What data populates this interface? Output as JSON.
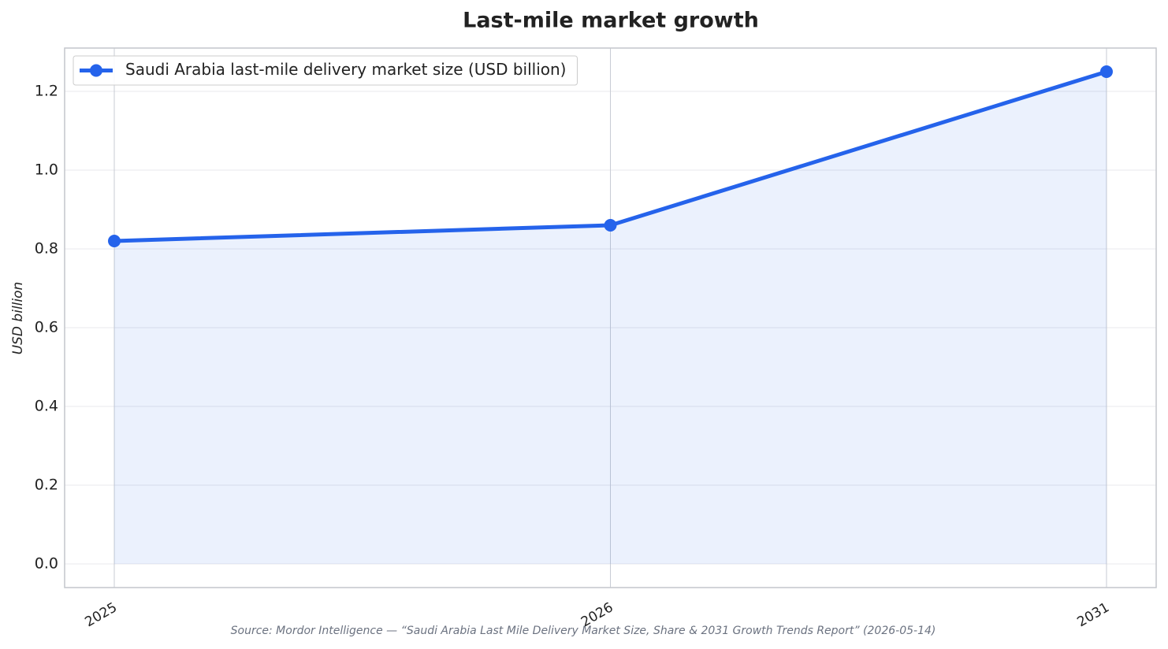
{
  "chart_data": {
    "type": "line",
    "title": "Last-mile market growth",
    "categories": [
      "2025",
      "2026",
      "2031"
    ],
    "series": [
      {
        "name": "Saudi Arabia last-mile delivery market size (USD billion)",
        "color": "#2563eb",
        "values": [
          0.82,
          0.86,
          1.25
        ]
      }
    ],
    "ylabel": "USD billion",
    "ylim": [
      -0.06,
      1.31
    ],
    "yticks": [
      {
        "value": 0,
        "label": "0.0"
      },
      0.2,
      0.4,
      0.6,
      0.8,
      {
        "value": 1,
        "label": "1.0"
      },
      1.2
    ],
    "grid": true,
    "legend": "upper-left",
    "fill_area": true,
    "source": "Source: Mordor Intelligence — “Saudi Arabia Last Mile Delivery Market Size, Share & 2031 Growth Trends Report” (2026-05-14)"
  }
}
